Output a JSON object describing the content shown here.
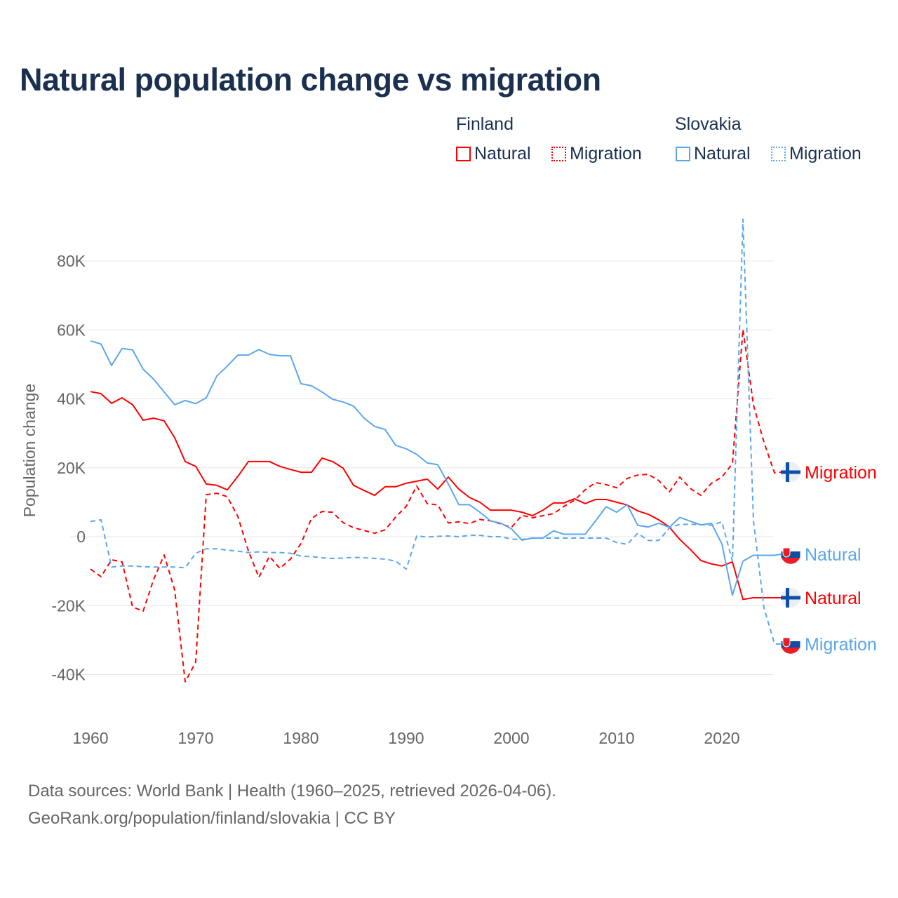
{
  "colors": {
    "finland": "#ff0000",
    "slovakia": "#5ba7ec",
    "title": "#1b3050"
  },
  "legend": {
    "groups": [
      {
        "country": "Finland",
        "items": [
          {
            "label": "Natural",
            "style": "solid"
          },
          {
            "label": "Migration",
            "style": "dotted"
          }
        ]
      },
      {
        "country": "Slovakia",
        "items": [
          {
            "label": "Natural",
            "style": "solid"
          },
          {
            "label": "Migration",
            "style": "dotted"
          }
        ]
      }
    ]
  },
  "footer": {
    "line1": "Data sources: World Bank | Health (1960–2025, retrieved 2026-04-06).",
    "line2": "GeoRank.org/population/finland/slovakia | CC BY"
  },
  "chart_data": {
    "type": "line",
    "title": "Natural population change vs migration",
    "xlabel": "",
    "ylabel": "Population change",
    "xlim": [
      1960,
      2025
    ],
    "ylim": [
      -40000,
      80000
    ],
    "x_ticks": [
      1960,
      1970,
      1980,
      1990,
      2000,
      2010,
      2020
    ],
    "y_ticks": [
      {
        "v": -40000,
        "label": "-40K"
      },
      {
        "v": -20000,
        "label": "-20K"
      },
      {
        "v": 0,
        "label": "0"
      },
      {
        "v": 20000,
        "label": "20K"
      },
      {
        "v": 40000,
        "label": "40K"
      },
      {
        "v": 60000,
        "label": "60K"
      },
      {
        "v": 80000,
        "label": "80K"
      }
    ],
    "grid": true,
    "x_start": 1960,
    "series": [
      {
        "name": "Finland Natural",
        "end_label": "Natural",
        "country": "finland",
        "dashed": false,
        "values": [
          42100,
          41500,
          38700,
          40300,
          38300,
          33800,
          34400,
          33600,
          28700,
          21800,
          20400,
          15300,
          14900,
          13600,
          17500,
          21800,
          21800,
          21800,
          20400,
          19500,
          18700,
          18700,
          22800,
          21800,
          19900,
          14900,
          13400,
          12000,
          14500,
          14500,
          15500,
          16100,
          16700,
          13800,
          17300,
          13800,
          11400,
          10000,
          7700,
          7700,
          7700,
          7100,
          6100,
          7700,
          9800,
          9800,
          11000,
          9600,
          10800,
          10800,
          10000,
          9200,
          7500,
          6500,
          4900,
          2800,
          -800,
          -3700,
          -6900,
          -7900,
          -8500,
          -7300,
          -18200,
          -17700,
          -17700,
          -17700
        ]
      },
      {
        "name": "Finland Migration",
        "end_label": "Migration",
        "country": "finland",
        "dashed": true,
        "values": [
          -9400,
          -11600,
          -6700,
          -7300,
          -20400,
          -21600,
          -12400,
          -5300,
          -15500,
          -42100,
          -36400,
          12200,
          12600,
          11600,
          5900,
          -4100,
          -11800,
          -5700,
          -9200,
          -6500,
          -2000,
          5300,
          7300,
          7100,
          4100,
          2600,
          1800,
          1000,
          2000,
          5700,
          8800,
          14700,
          9600,
          9200,
          4000,
          4300,
          3800,
          5000,
          4600,
          3700,
          2700,
          6200,
          5500,
          6100,
          6700,
          8800,
          10600,
          13600,
          15700,
          15100,
          14200,
          16900,
          17900,
          18100,
          16300,
          13000,
          17300,
          14000,
          12000,
          15500,
          17300,
          21200,
          60200,
          38200,
          27400,
          18500
        ]
      },
      {
        "name": "Slovakia Natural",
        "end_label": "Natural",
        "country": "slovakia",
        "dashed": false,
        "values": [
          56800,
          55900,
          49700,
          54600,
          54200,
          48600,
          45700,
          42000,
          38300,
          39500,
          38600,
          40300,
          46600,
          49500,
          52700,
          52700,
          54300,
          52900,
          52500,
          52500,
          44400,
          43800,
          42000,
          39900,
          39100,
          37900,
          34400,
          32000,
          31100,
          26500,
          25500,
          23900,
          21400,
          20900,
          15300,
          9300,
          9300,
          7100,
          4600,
          3900,
          2300,
          -1000,
          -400,
          -400,
          1700,
          700,
          700,
          700,
          4600,
          8700,
          7100,
          9300,
          3300,
          2800,
          3900,
          2700,
          5600,
          4500,
          3400,
          3900,
          -2100,
          -17000,
          -7100,
          -5400,
          -5400,
          -5400
        ]
      },
      {
        "name": "Slovakia Migration",
        "end_label": "Migration",
        "country": "slovakia",
        "dashed": true,
        "values": [
          4400,
          4900,
          -8800,
          -8500,
          -8500,
          -8700,
          -8800,
          -8800,
          -8800,
          -9000,
          -4800,
          -3500,
          -3500,
          -3900,
          -4200,
          -4600,
          -4400,
          -4600,
          -4600,
          -4800,
          -5600,
          -5800,
          -6100,
          -6300,
          -6200,
          -6000,
          -6100,
          -6300,
          -6500,
          -7100,
          -9400,
          200,
          -100,
          100,
          200,
          0,
          400,
          400,
          0,
          0,
          -700,
          -800,
          -400,
          -400,
          -400,
          -400,
          -400,
          -400,
          -400,
          -400,
          -1700,
          -2200,
          1000,
          -1100,
          -1100,
          2500,
          3600,
          3600,
          3500,
          3300,
          4300,
          -7100,
          92100,
          4600,
          -20700,
          -31100
        ]
      }
    ]
  }
}
